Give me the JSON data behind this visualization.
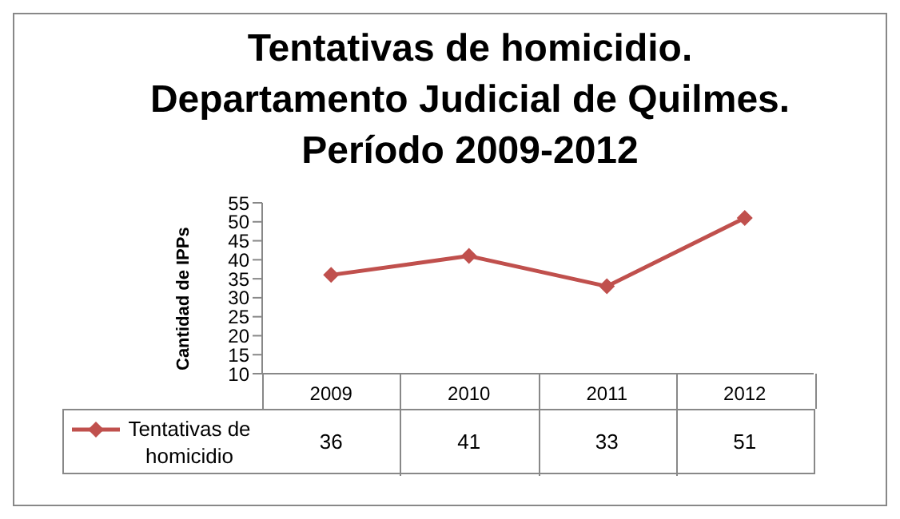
{
  "chart_data": {
    "type": "line",
    "title": "Tentativas de homicidio. Departamento Judicial de Quilmes. Período  2009-2012",
    "ylabel": "Cantidad de IPPs",
    "categories": [
      "2009",
      "2010",
      "2011",
      "2012"
    ],
    "series": [
      {
        "name": "Tentativas de homicidio",
        "color": "#c0504d",
        "values": [
          36,
          41,
          33,
          51
        ]
      }
    ],
    "ylim": [
      10,
      55
    ],
    "yticks": [
      10,
      15,
      20,
      25,
      30,
      35,
      40,
      45,
      50,
      55
    ],
    "marker": "diamond",
    "data_labels": true,
    "legend": "bottom",
    "grid": false
  }
}
